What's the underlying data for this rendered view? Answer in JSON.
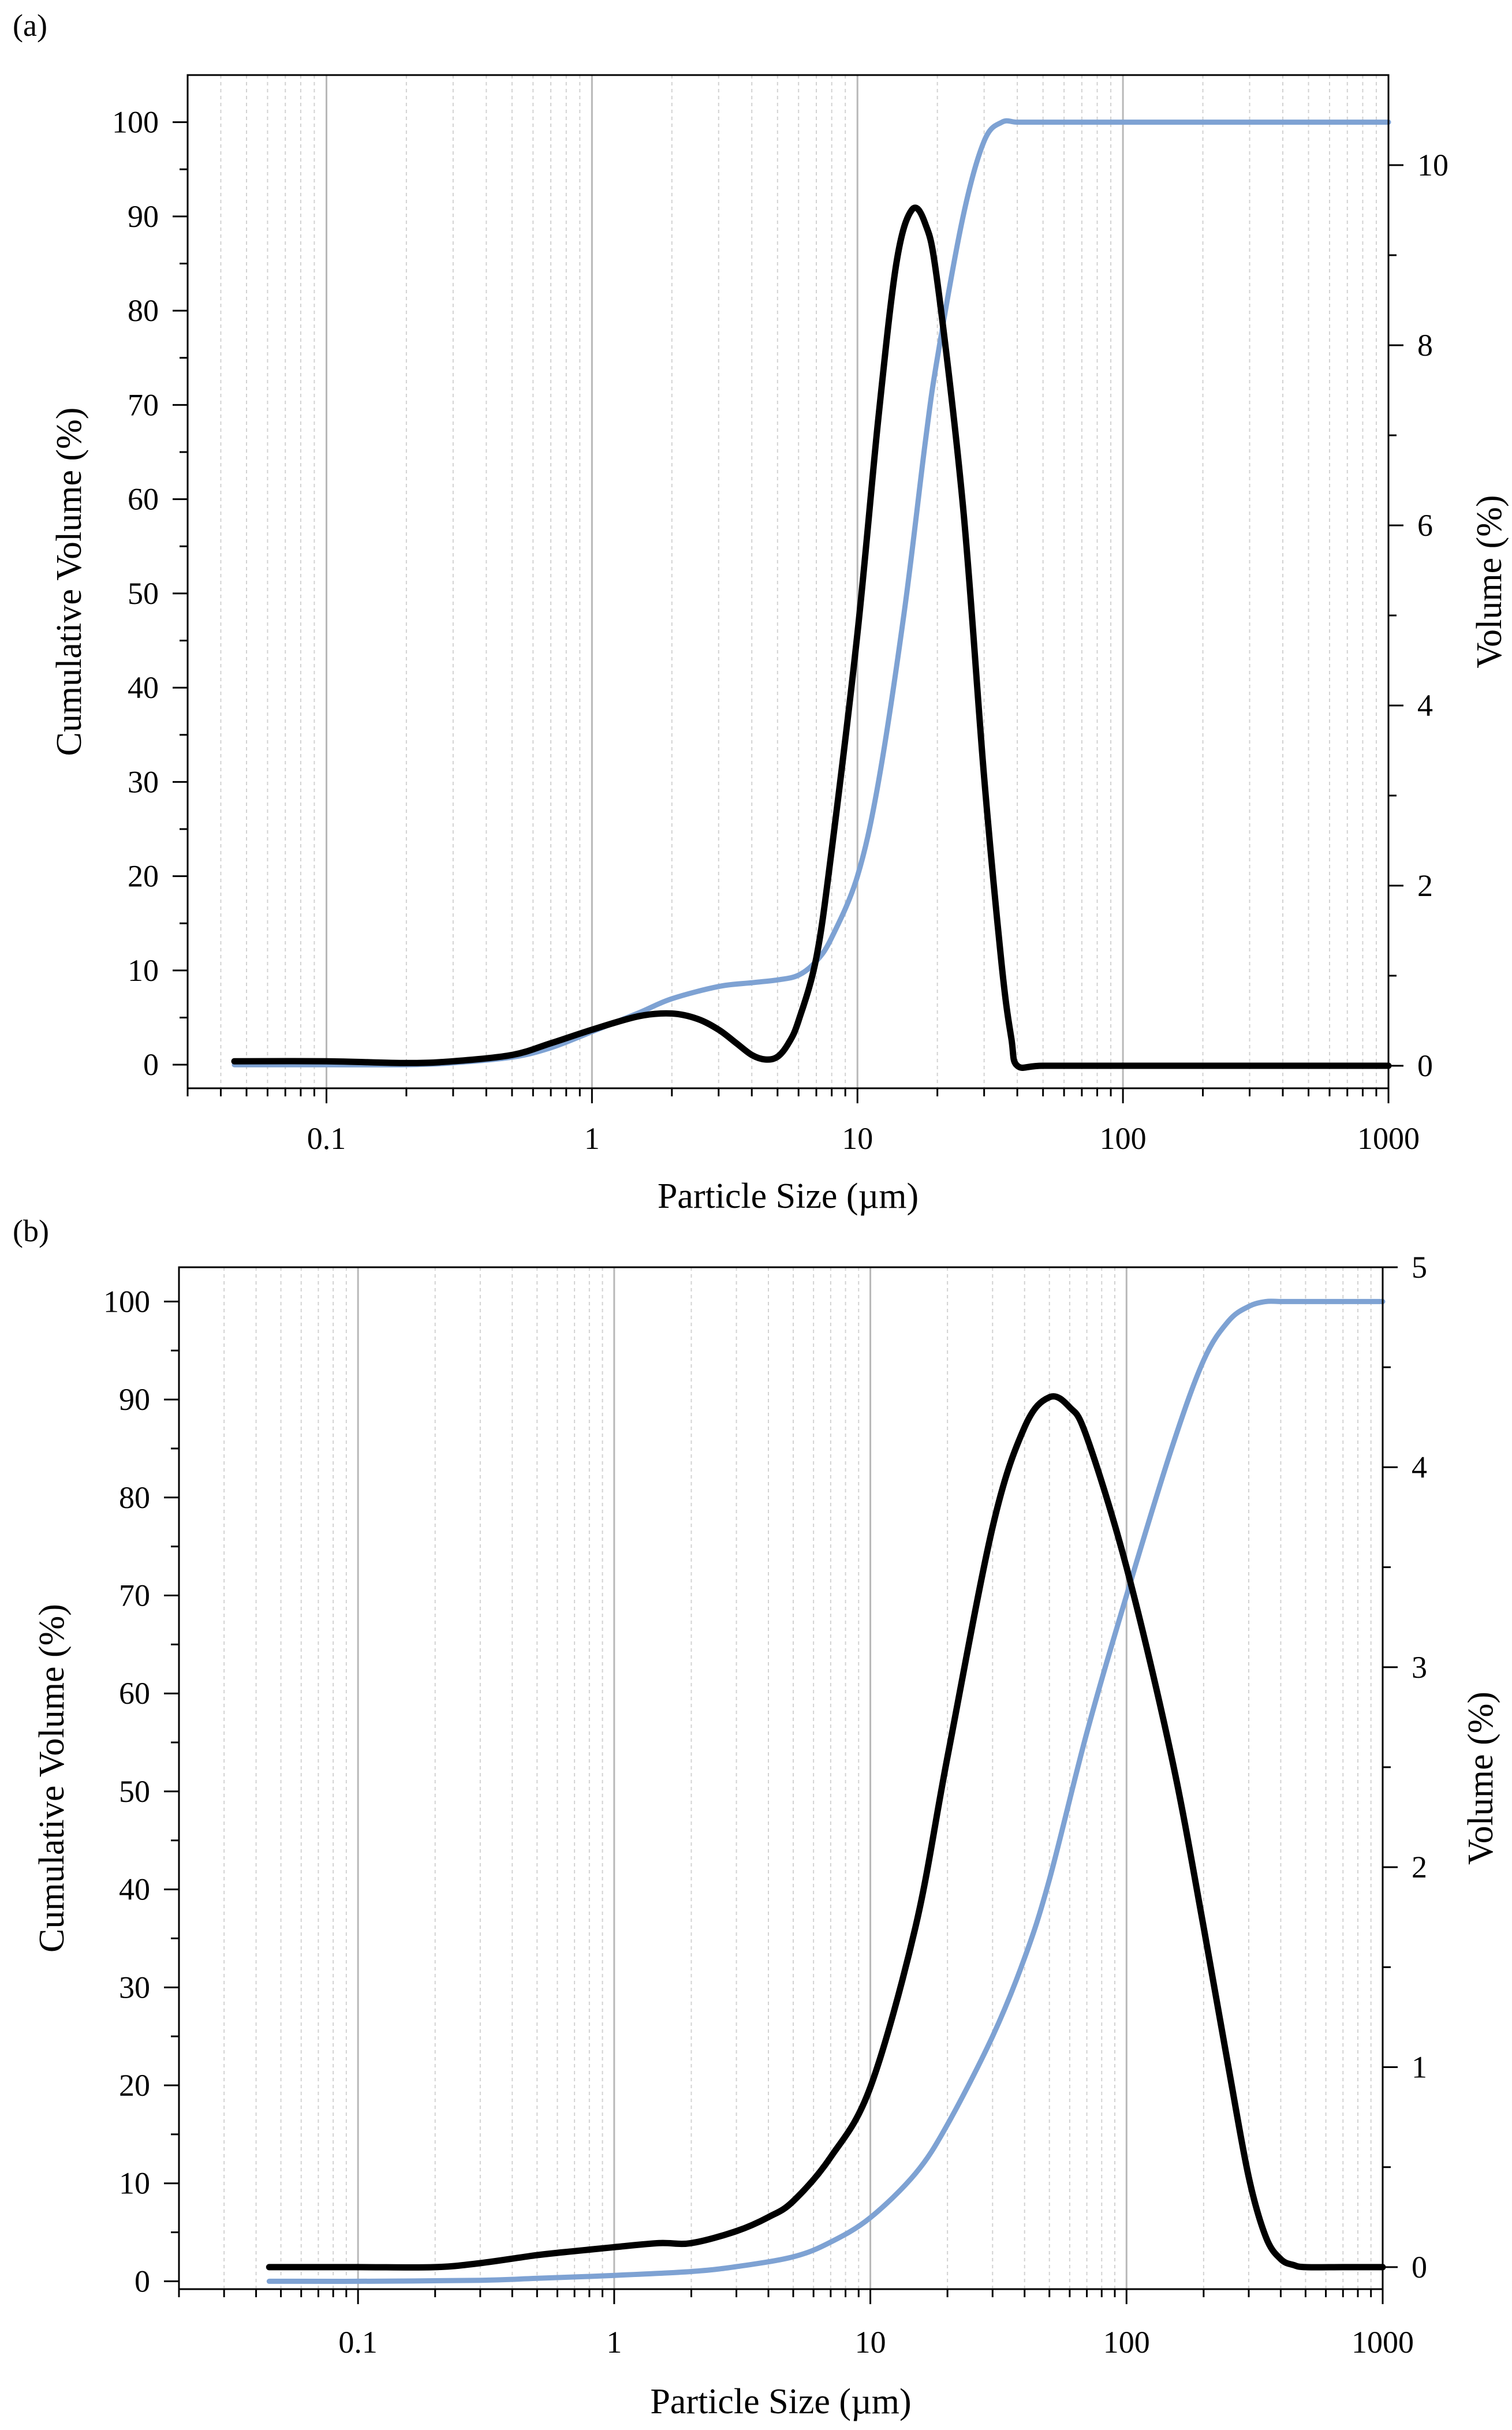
{
  "chart_data": [
    {
      "type": "line",
      "panel_label": "(a)",
      "xlabel": "Particle Size (µm)",
      "ylabel_left": "Cumulative Volume (%)",
      "ylabel_right": "Volume (%)",
      "xscale": "log",
      "xlim": [
        0.03,
        1000
      ],
      "xticks": [
        0.1,
        1,
        10,
        100,
        1000
      ],
      "xtick_labels": [
        "0.1",
        "1",
        "10",
        "100",
        "1000"
      ],
      "ylim_left": [
        -2.5,
        105
      ],
      "yticks_left": [
        0,
        10,
        20,
        30,
        40,
        50,
        60,
        70,
        80,
        90,
        100
      ],
      "ytick_labels_left": [
        "0",
        "10",
        "20",
        "30",
        "40",
        "50",
        "60",
        "70",
        "80",
        "90",
        "100"
      ],
      "ylim_right": [
        -0.25,
        11.0
      ],
      "yticks_right": [
        0,
        2,
        4,
        6,
        8,
        10
      ],
      "ytick_labels_right": [
        "0",
        "2",
        "4",
        "6",
        "8",
        "10"
      ],
      "grid": "vertical log grid",
      "series": [
        {
          "name": "Cumulative Volume",
          "axis": "left",
          "color": "#7ea2d3",
          "x": [
            0.045,
            0.1,
            0.2,
            0.3,
            0.5,
            0.7,
            1,
            1.5,
            2,
            3,
            4,
            5,
            6,
            7,
            8,
            10,
            12,
            15,
            18,
            20,
            25,
            30,
            35,
            40,
            50,
            100,
            1000
          ],
          "y": [
            0,
            0,
            0,
            0.2,
            0.8,
            1.8,
            3.5,
            5.5,
            7,
            8.3,
            8.7,
            9,
            9.5,
            11,
            13.5,
            20,
            30,
            48,
            66,
            75,
            90,
            98,
            100,
            100,
            100,
            100,
            100
          ]
        },
        {
          "name": "Volume",
          "axis": "right",
          "color": "#000000",
          "x": [
            0.045,
            0.1,
            0.2,
            0.3,
            0.5,
            0.7,
            1,
            1.5,
            2,
            2.5,
            3,
            3.5,
            4,
            4.5,
            5,
            5.5,
            6,
            7,
            8,
            10,
            12,
            14,
            16,
            18,
            20,
            25,
            30,
            35,
            38,
            40,
            50,
            100,
            1000
          ],
          "y": [
            0.05,
            0.05,
            0.03,
            0.05,
            0.12,
            0.25,
            0.4,
            0.55,
            0.58,
            0.52,
            0.4,
            0.25,
            0.12,
            0.07,
            0.1,
            0.25,
            0.5,
            1.2,
            2.4,
            4.8,
            7.2,
            8.9,
            9.5,
            9.35,
            8.7,
            6.2,
            3.2,
            1.1,
            0.3,
            0,
            0,
            0,
            0
          ]
        }
      ]
    },
    {
      "type": "line",
      "panel_label": "(b)",
      "xlabel": "Particle Size (µm)",
      "ylabel_left": "Cumulative Volume (%)",
      "ylabel_right": "Volume (%)",
      "xscale": "log",
      "xlim": [
        0.02,
        1000
      ],
      "xticks": [
        0.1,
        1,
        10,
        100,
        1000
      ],
      "xtick_labels": [
        "0.1",
        "1",
        "10",
        "100",
        "1000"
      ],
      "ylim_left": [
        -0.8,
        103.5
      ],
      "yticks_left": [
        0,
        10,
        20,
        30,
        40,
        50,
        60,
        70,
        80,
        90,
        100
      ],
      "ytick_labels_left": [
        "0",
        "10",
        "20",
        "30",
        "40",
        "50",
        "60",
        "70",
        "80",
        "90",
        "100"
      ],
      "ylim_right": [
        -0.11,
        5.0
      ],
      "yticks_right": [
        0,
        1,
        2,
        3,
        4,
        5
      ],
      "ytick_labels_right": [
        "0",
        "1",
        "2",
        "3",
        "4",
        "5"
      ],
      "grid": "vertical log grid",
      "series": [
        {
          "name": "Cumulative Volume",
          "axis": "left",
          "color": "#7ea2d3",
          "x": [
            0.045,
            0.1,
            0.3,
            0.5,
            1,
            2,
            3,
            5,
            7,
            10,
            15,
            20,
            30,
            40,
            50,
            70,
            100,
            150,
            200,
            250,
            300,
            350,
            400,
            500,
            1000
          ],
          "y": [
            0,
            0,
            0.1,
            0.3,
            0.6,
            1,
            1.5,
            2.5,
            4,
            6.5,
            11,
            16,
            25,
            33,
            41,
            56,
            70,
            85,
            94,
            98,
            99.5,
            100,
            100,
            100,
            100
          ]
        },
        {
          "name": "Volume",
          "axis": "right",
          "color": "#000000",
          "x": [
            0.045,
            0.1,
            0.2,
            0.3,
            0.5,
            0.7,
            1,
            1.5,
            2,
            3,
            4,
            5,
            7,
            10,
            15,
            20,
            30,
            40,
            50,
            60,
            70,
            100,
            150,
            200,
            250,
            300,
            350,
            400,
            450,
            500,
            700,
            1000
          ],
          "y": [
            0,
            0,
            0,
            0.02,
            0.06,
            0.08,
            0.1,
            0.12,
            0.12,
            0.18,
            0.25,
            0.33,
            0.55,
            0.9,
            1.7,
            2.55,
            3.7,
            4.2,
            4.35,
            4.3,
            4.15,
            3.5,
            2.55,
            1.7,
            1,
            0.45,
            0.15,
            0.04,
            0.01,
            0,
            0,
            0
          ]
        }
      ]
    }
  ]
}
